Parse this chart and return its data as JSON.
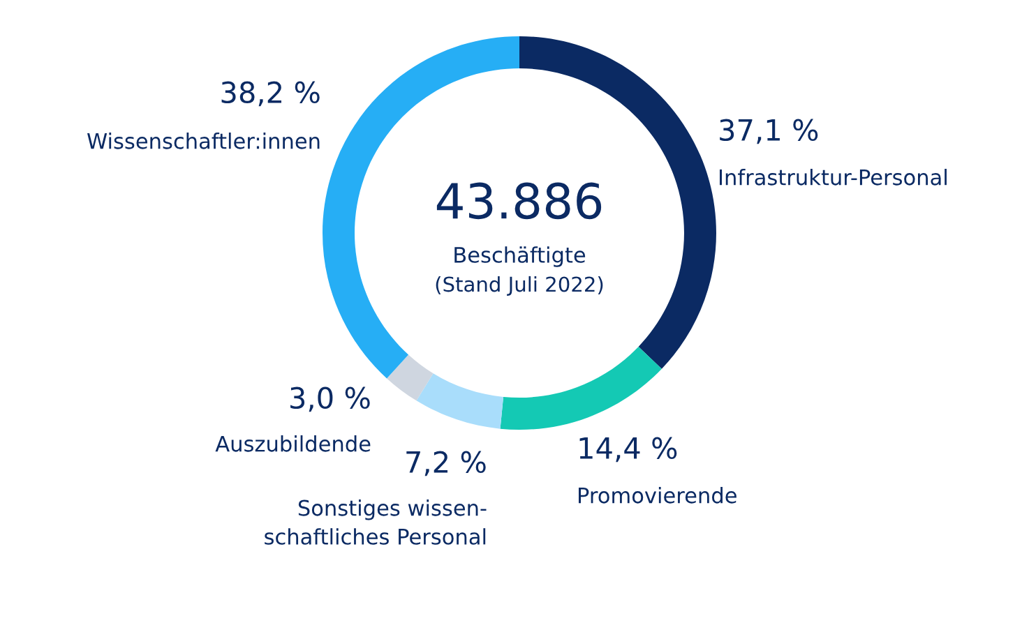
{
  "chart_data": {
    "type": "donut",
    "title": "43.886",
    "subtitle": "Beschäftigte",
    "annotations": [
      "(Stand Juli 2022)"
    ],
    "categories": [
      "Infrastruktur-Personal",
      "Promovierende",
      "Sonstiges wissen-\nschaftliches Personal",
      "Auszubildende",
      "Wissenschaftler:innen"
    ],
    "values": [
      37.1,
      14.4,
      7.2,
      3.0,
      38.2
    ],
    "value_labels": [
      "37,1 %",
      "14,4 %",
      "7,2 %",
      "3,0 %",
      "38,2 %"
    ],
    "colors": [
      "#0b2a63",
      "#14c9b4",
      "#a9ddfb",
      "#cfd6e0",
      "#26aef5"
    ],
    "legend": false
  }
}
